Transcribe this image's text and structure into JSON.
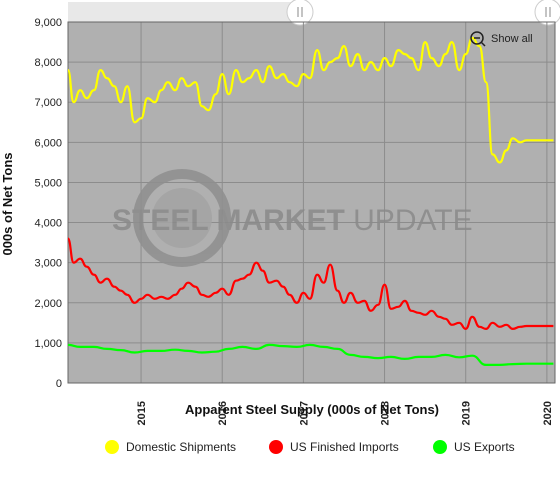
{
  "chart_data": {
    "type": "line",
    "title": "",
    "xlabel": "Apparent Steel Supply (000s of Net Tons)",
    "ylabel": "000s of Net Tons",
    "ylim": [
      0,
      9000
    ],
    "xlim": [
      2014.1,
      2020.1
    ],
    "y_ticks": [
      "0",
      "1,000",
      "2,000",
      "3,000",
      "4,000",
      "5,000",
      "6,000",
      "7,000",
      "8,000",
      "9,000"
    ],
    "x_ticks": [
      "2015",
      "2016",
      "2017",
      "2018",
      "2019",
      "2020"
    ],
    "grid": true,
    "legend_position": "bottom",
    "watermark": "STEEL MARKET UPDATE",
    "zoom_button": {
      "label": "Show all",
      "icon": "zoom-out-icon"
    },
    "plot_background": "#b0b0b0",
    "series": [
      {
        "name": "Domestic Shipments",
        "color": "#ffff00",
        "x": [
          2014.1,
          2014.17,
          2014.25,
          2014.33,
          2014.42,
          2014.5,
          2014.58,
          2014.67,
          2014.75,
          2014.83,
          2014.92,
          2015.0,
          2015.08,
          2015.17,
          2015.25,
          2015.33,
          2015.42,
          2015.5,
          2015.58,
          2015.67,
          2015.75,
          2015.83,
          2015.92,
          2016.0,
          2016.08,
          2016.17,
          2016.25,
          2016.33,
          2016.42,
          2016.5,
          2016.58,
          2016.67,
          2016.75,
          2016.83,
          2016.92,
          2017.0,
          2017.08,
          2017.17,
          2017.25,
          2017.33,
          2017.42,
          2017.5,
          2017.58,
          2017.67,
          2017.75,
          2017.83,
          2017.92,
          2018.0,
          2018.08,
          2018.17,
          2018.25,
          2018.33,
          2018.42,
          2018.5,
          2018.58,
          2018.67,
          2018.75,
          2018.83,
          2018.92,
          2019.0,
          2019.08,
          2019.17,
          2019.25,
          2019.33,
          2019.42,
          2019.5,
          2019.58,
          2019.67,
          2019.75,
          2019.83,
          2019.92,
          2020.0,
          2020.08
        ],
        "values": [
          7800,
          7000,
          7300,
          7100,
          7300,
          7800,
          7600,
          7400,
          7000,
          7400,
          6500,
          6600,
          7100,
          7000,
          7300,
          7500,
          7300,
          7600,
          7400,
          7500,
          6900,
          6800,
          7200,
          7700,
          7200,
          7800,
          7500,
          7600,
          7800,
          7500,
          7900,
          7600,
          7700,
          7500,
          7400,
          7700,
          7600,
          8300,
          7800,
          8000,
          8100,
          8400,
          7900,
          8200,
          7800,
          8000,
          7800,
          8100,
          7900,
          8300,
          8200,
          8100,
          7800,
          8500,
          8100,
          7900,
          8200,
          8500,
          7800,
          8200,
          8600,
          8400,
          7500,
          5700,
          5500,
          5800,
          6100,
          6000,
          6050,
          6050,
          6050,
          6050,
          6050
        ],
        "x_shift_note": ""
      },
      {
        "name": "US Finished Imports",
        "color": "#ff0000",
        "x": [
          2014.1,
          2014.17,
          2014.25,
          2014.33,
          2014.42,
          2014.5,
          2014.58,
          2014.67,
          2014.75,
          2014.83,
          2014.92,
          2015.0,
          2015.08,
          2015.17,
          2015.25,
          2015.33,
          2015.42,
          2015.5,
          2015.58,
          2015.67,
          2015.75,
          2015.83,
          2015.92,
          2016.0,
          2016.08,
          2016.17,
          2016.25,
          2016.33,
          2016.42,
          2016.5,
          2016.58,
          2016.67,
          2016.75,
          2016.83,
          2016.92,
          2017.0,
          2017.08,
          2017.17,
          2017.25,
          2017.33,
          2017.42,
          2017.5,
          2017.58,
          2017.67,
          2017.75,
          2017.83,
          2017.92,
          2018.0,
          2018.08,
          2018.17,
          2018.25,
          2018.33,
          2018.42,
          2018.5,
          2018.58,
          2018.67,
          2018.75,
          2018.83,
          2018.92,
          2019.0,
          2019.08,
          2019.17,
          2019.25,
          2019.33,
          2019.42,
          2019.5,
          2019.58,
          2019.67,
          2019.75,
          2019.83,
          2019.92,
          2020.0,
          2020.08
        ],
        "values": [
          3600,
          3000,
          3100,
          2900,
          2700,
          2500,
          2600,
          2400,
          2300,
          2200,
          2000,
          2100,
          2200,
          2100,
          2150,
          2100,
          2200,
          2350,
          2500,
          2400,
          2200,
          2150,
          2250,
          2350,
          2200,
          2550,
          2600,
          2700,
          3000,
          2800,
          2500,
          2550,
          2400,
          2200,
          2000,
          2250,
          2100,
          2700,
          2500,
          2950,
          2300,
          2000,
          2250,
          2000,
          2050,
          1800,
          1950,
          2450,
          1850,
          1900,
          2050,
          1800,
          1750,
          1700,
          1800,
          1650,
          1600,
          1450,
          1500,
          1350,
          1650,
          1400,
          1350,
          1500,
          1400,
          1450,
          1350,
          1400,
          1420,
          1420,
          1420,
          1420,
          1420
        ]
      },
      {
        "name": "US Exports",
        "color": "#00ff00",
        "x": [
          2014.1,
          2014.25,
          2014.42,
          2014.58,
          2014.75,
          2014.92,
          2015.08,
          2015.25,
          2015.42,
          2015.58,
          2015.75,
          2015.92,
          2016.08,
          2016.25,
          2016.42,
          2016.58,
          2016.75,
          2016.92,
          2017.08,
          2017.25,
          2017.42,
          2017.58,
          2017.75,
          2017.92,
          2018.08,
          2018.25,
          2018.42,
          2018.58,
          2018.75,
          2018.92,
          2019.08,
          2019.25,
          2019.42,
          2019.58,
          2019.75,
          2019.92,
          2020.08
        ],
        "values": [
          950,
          900,
          900,
          850,
          820,
          760,
          800,
          800,
          830,
          800,
          760,
          780,
          850,
          900,
          850,
          950,
          920,
          900,
          950,
          900,
          850,
          700,
          650,
          620,
          650,
          600,
          650,
          650,
          700,
          640,
          680,
          450,
          450,
          470,
          480,
          480,
          480
        ]
      }
    ]
  }
}
